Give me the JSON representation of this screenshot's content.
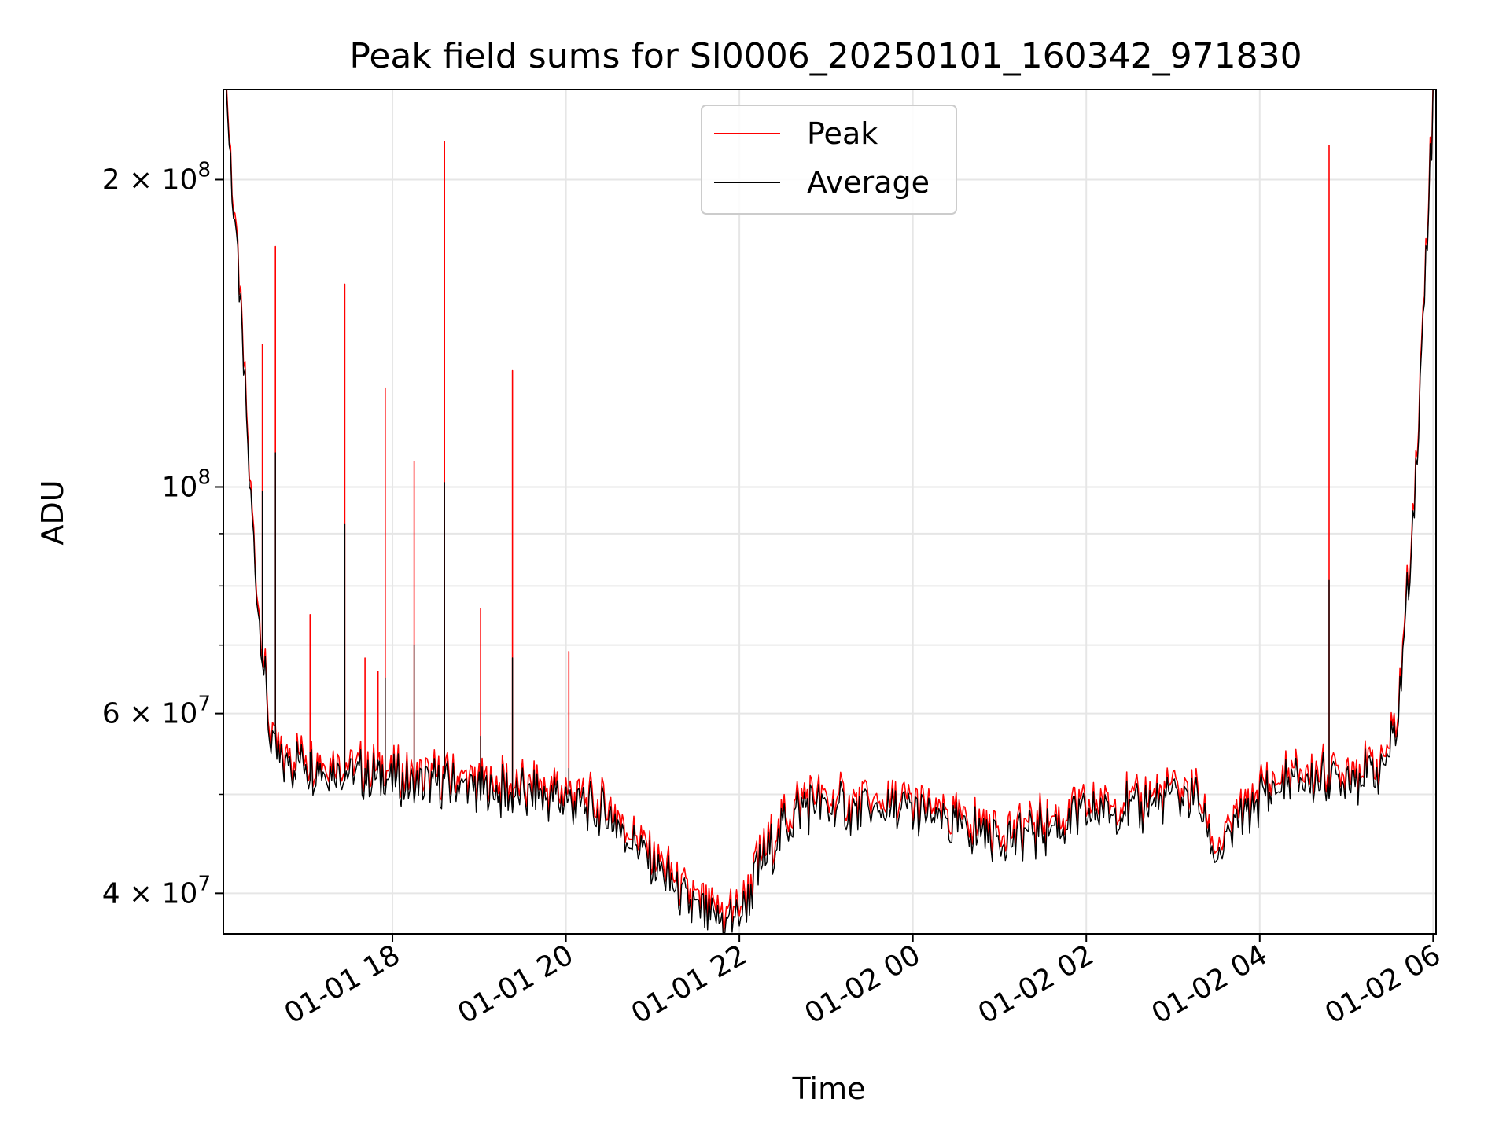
{
  "chart_data": {
    "type": "line",
    "title": "Peak field sums for SI0006_20250101_160342_971830",
    "xlabel": "Time",
    "ylabel": "ADU",
    "yscale": "log",
    "ylim": [
      36500000,
      245000000
    ],
    "xlim": [
      "2025-01-01 16:03",
      "2025-01-02 06:02"
    ],
    "grid": true,
    "legend_position": "top-center",
    "x_ticks": [
      {
        "value": "2025-01-01 18:00",
        "label": "01-01 18"
      },
      {
        "value": "2025-01-01 20:00",
        "label": "01-01 20"
      },
      {
        "value": "2025-01-01 22:00",
        "label": "01-01 22"
      },
      {
        "value": "2025-01-02 00:00",
        "label": "01-02 00"
      },
      {
        "value": "2025-01-02 02:00",
        "label": "01-02 02"
      },
      {
        "value": "2025-01-02 04:00",
        "label": "01-02 04"
      },
      {
        "value": "2025-01-02 06:00",
        "label": "01-02 06"
      }
    ],
    "y_ticks": [
      {
        "value": 40000000,
        "mantissa": "4",
        "exponent": "7"
      },
      {
        "value": 60000000,
        "mantissa": "6",
        "exponent": "7"
      },
      {
        "value": 100000000,
        "mantissa": "",
        "exponent": "8"
      },
      {
        "value": 200000000,
        "mantissa": "2",
        "exponent": "8"
      }
    ],
    "y_minor_ticks": [
      50000000,
      70000000,
      80000000,
      90000000
    ],
    "x": [
      "2025-01-01 16:05",
      "2025-01-01 16:10",
      "2025-01-01 16:15",
      "2025-01-01 16:20",
      "2025-01-01 16:25",
      "2025-01-01 16:30",
      "2025-01-01 16:35",
      "2025-01-01 16:40",
      "2025-01-01 16:45",
      "2025-01-01 17:00",
      "2025-01-01 17:15",
      "2025-01-01 17:30",
      "2025-01-01 17:45",
      "2025-01-01 18:00",
      "2025-01-01 18:30",
      "2025-01-01 19:00",
      "2025-01-01 19:30",
      "2025-01-01 20:00",
      "2025-01-01 20:30",
      "2025-01-01 20:45",
      "2025-01-01 21:00",
      "2025-01-01 21:15",
      "2025-01-01 21:30",
      "2025-01-01 21:45",
      "2025-01-01 22:00",
      "2025-01-01 22:15",
      "2025-01-01 22:30",
      "2025-01-01 22:45",
      "2025-01-01 23:00",
      "2025-01-01 23:30",
      "2025-01-02 00:00",
      "2025-01-02 00:30",
      "2025-01-02 01:00",
      "2025-01-02 01:30",
      "2025-01-02 02:00",
      "2025-01-02 02:30",
      "2025-01-02 03:00",
      "2025-01-02 03:15",
      "2025-01-02 03:30",
      "2025-01-02 04:00",
      "2025-01-02 04:30",
      "2025-01-02 05:00",
      "2025-01-02 05:15",
      "2025-01-02 05:25",
      "2025-01-02 05:35",
      "2025-01-02 05:40",
      "2025-01-02 05:45",
      "2025-01-02 05:50",
      "2025-01-02 05:55",
      "2025-01-02 06:00"
    ],
    "series": [
      {
        "name": "Peak",
        "color": "#ff0000",
        "values": [
          242000000,
          190000000,
          150000000,
          110000000,
          85000000,
          70000000,
          58000000,
          55000000,
          54500000,
          54000000,
          53500000,
          53000000,
          52500000,
          52000000,
          51500000,
          51000000,
          50500000,
          50000000,
          48000000,
          45500000,
          43500000,
          41000000,
          39000000,
          38000000,
          38500000,
          43000000,
          47000000,
          49500000,
          49000000,
          48500000,
          48500000,
          47000000,
          46000000,
          46500000,
          48500000,
          49000000,
          50000000,
          50500000,
          44000000,
          50500000,
          52000000,
          52500000,
          53000000,
          53500000,
          58000000,
          72000000,
          90000000,
          115000000,
          170000000,
          240000000
        ]
      },
      {
        "name": "Average",
        "color": "#000000",
        "values": [
          241000000,
          189000000,
          149000000,
          109000000,
          84500000,
          69500000,
          57500000,
          54500000,
          54000000,
          53500000,
          53000000,
          52500000,
          52000000,
          51500000,
          51000000,
          50500000,
          50000000,
          49500000,
          47500000,
          45000000,
          43000000,
          40500000,
          38500000,
          37500000,
          38000000,
          42500000,
          46500000,
          49000000,
          48500000,
          48000000,
          48000000,
          46500000,
          45500000,
          46000000,
          48000000,
          48500000,
          49500000,
          50000000,
          43500000,
          50000000,
          51500000,
          52000000,
          52500000,
          53000000,
          57500000,
          71500000,
          89500000,
          114000000,
          169000000,
          239000000
        ]
      }
    ],
    "spikes": [
      {
        "x": "2025-01-01 16:30",
        "peak": 138000000,
        "average": 99000000
      },
      {
        "x": "2025-01-01 16:39",
        "peak": 172000000,
        "average": 108000000
      },
      {
        "x": "2025-01-01 17:03",
        "peak": 75000000,
        "average": 55000000
      },
      {
        "x": "2025-01-01 17:27",
        "peak": 158000000,
        "average": 92000000
      },
      {
        "x": "2025-01-01 17:41",
        "peak": 68000000,
        "average": 53000000
      },
      {
        "x": "2025-01-01 17:50",
        "peak": 66000000,
        "average": 54000000
      },
      {
        "x": "2025-01-01 17:55",
        "peak": 125000000,
        "average": 65000000
      },
      {
        "x": "2025-01-01 18:15",
        "peak": 106000000,
        "average": 70000000
      },
      {
        "x": "2025-01-01 18:36",
        "peak": 218000000,
        "average": 101000000
      },
      {
        "x": "2025-01-01 19:01",
        "peak": 76000000,
        "average": 57000000
      },
      {
        "x": "2025-01-01 19:23",
        "peak": 130000000,
        "average": 68000000
      },
      {
        "x": "2025-01-01 20:02",
        "peak": 69000000,
        "average": 53000000
      },
      {
        "x": "2025-01-02 04:48",
        "peak": 216000000,
        "average": 81000000
      }
    ]
  }
}
